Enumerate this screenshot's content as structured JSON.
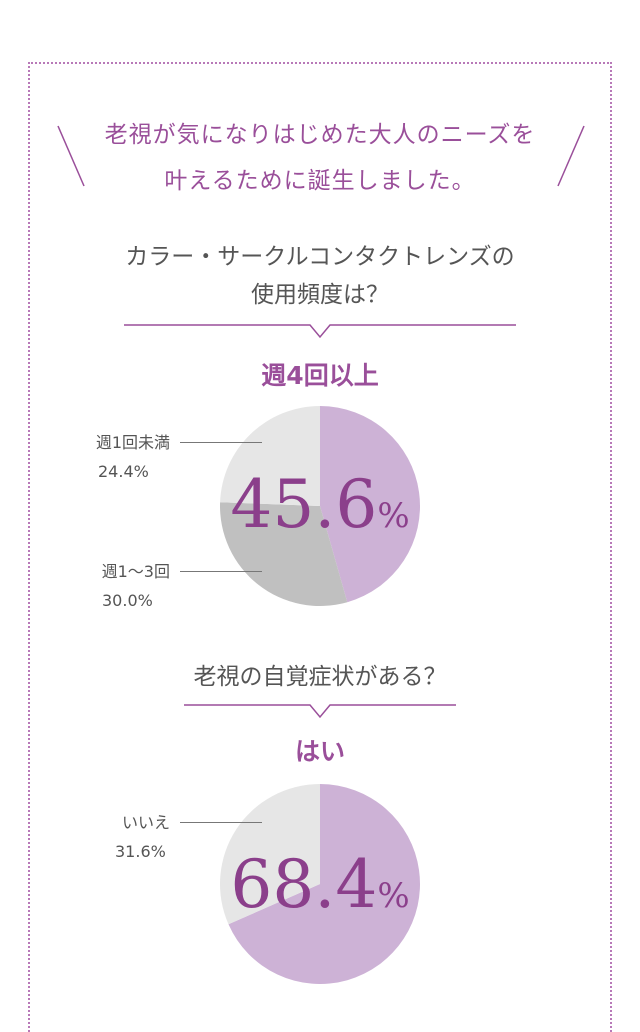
{
  "colors": {
    "accent": "#9a4f9a",
    "pie_purple": "#cdb2d6",
    "pie_light": "#e6e6e6",
    "pie_dark": "#c0c0c0"
  },
  "intro": {
    "line1": "老視が気になりはじめた大人のニーズを",
    "line2": "叶えるために誕生しました。"
  },
  "chart_data": [
    {
      "type": "pie",
      "title_line1": "カラー・サークルコンタクトレンズの",
      "title_line2": "使用頻度は？",
      "highlight_label": "週4回以上",
      "highlight_number": "45.6",
      "highlight_unit": "%",
      "slices": [
        {
          "label": "週4回以上",
          "value": 45.6,
          "value_text": "45.6%",
          "color": "#cdb2d6"
        },
        {
          "label": "週1〜3回",
          "value": 30.0,
          "value_text": "30.0%",
          "color": "#c0c0c0"
        },
        {
          "label": "週1回未満",
          "value": 24.4,
          "value_text": "24.4%",
          "color": "#e6e6e6"
        }
      ]
    },
    {
      "type": "pie",
      "title_line1": "老視の自覚症状がある？",
      "highlight_label": "はい",
      "highlight_number": "68.4",
      "highlight_unit": "%",
      "slices": [
        {
          "label": "はい",
          "value": 68.4,
          "value_text": "68.4%",
          "color": "#cdb2d6"
        },
        {
          "label": "いいえ",
          "value": 31.6,
          "value_text": "31.6%",
          "color": "#e6e6e6"
        }
      ]
    }
  ]
}
